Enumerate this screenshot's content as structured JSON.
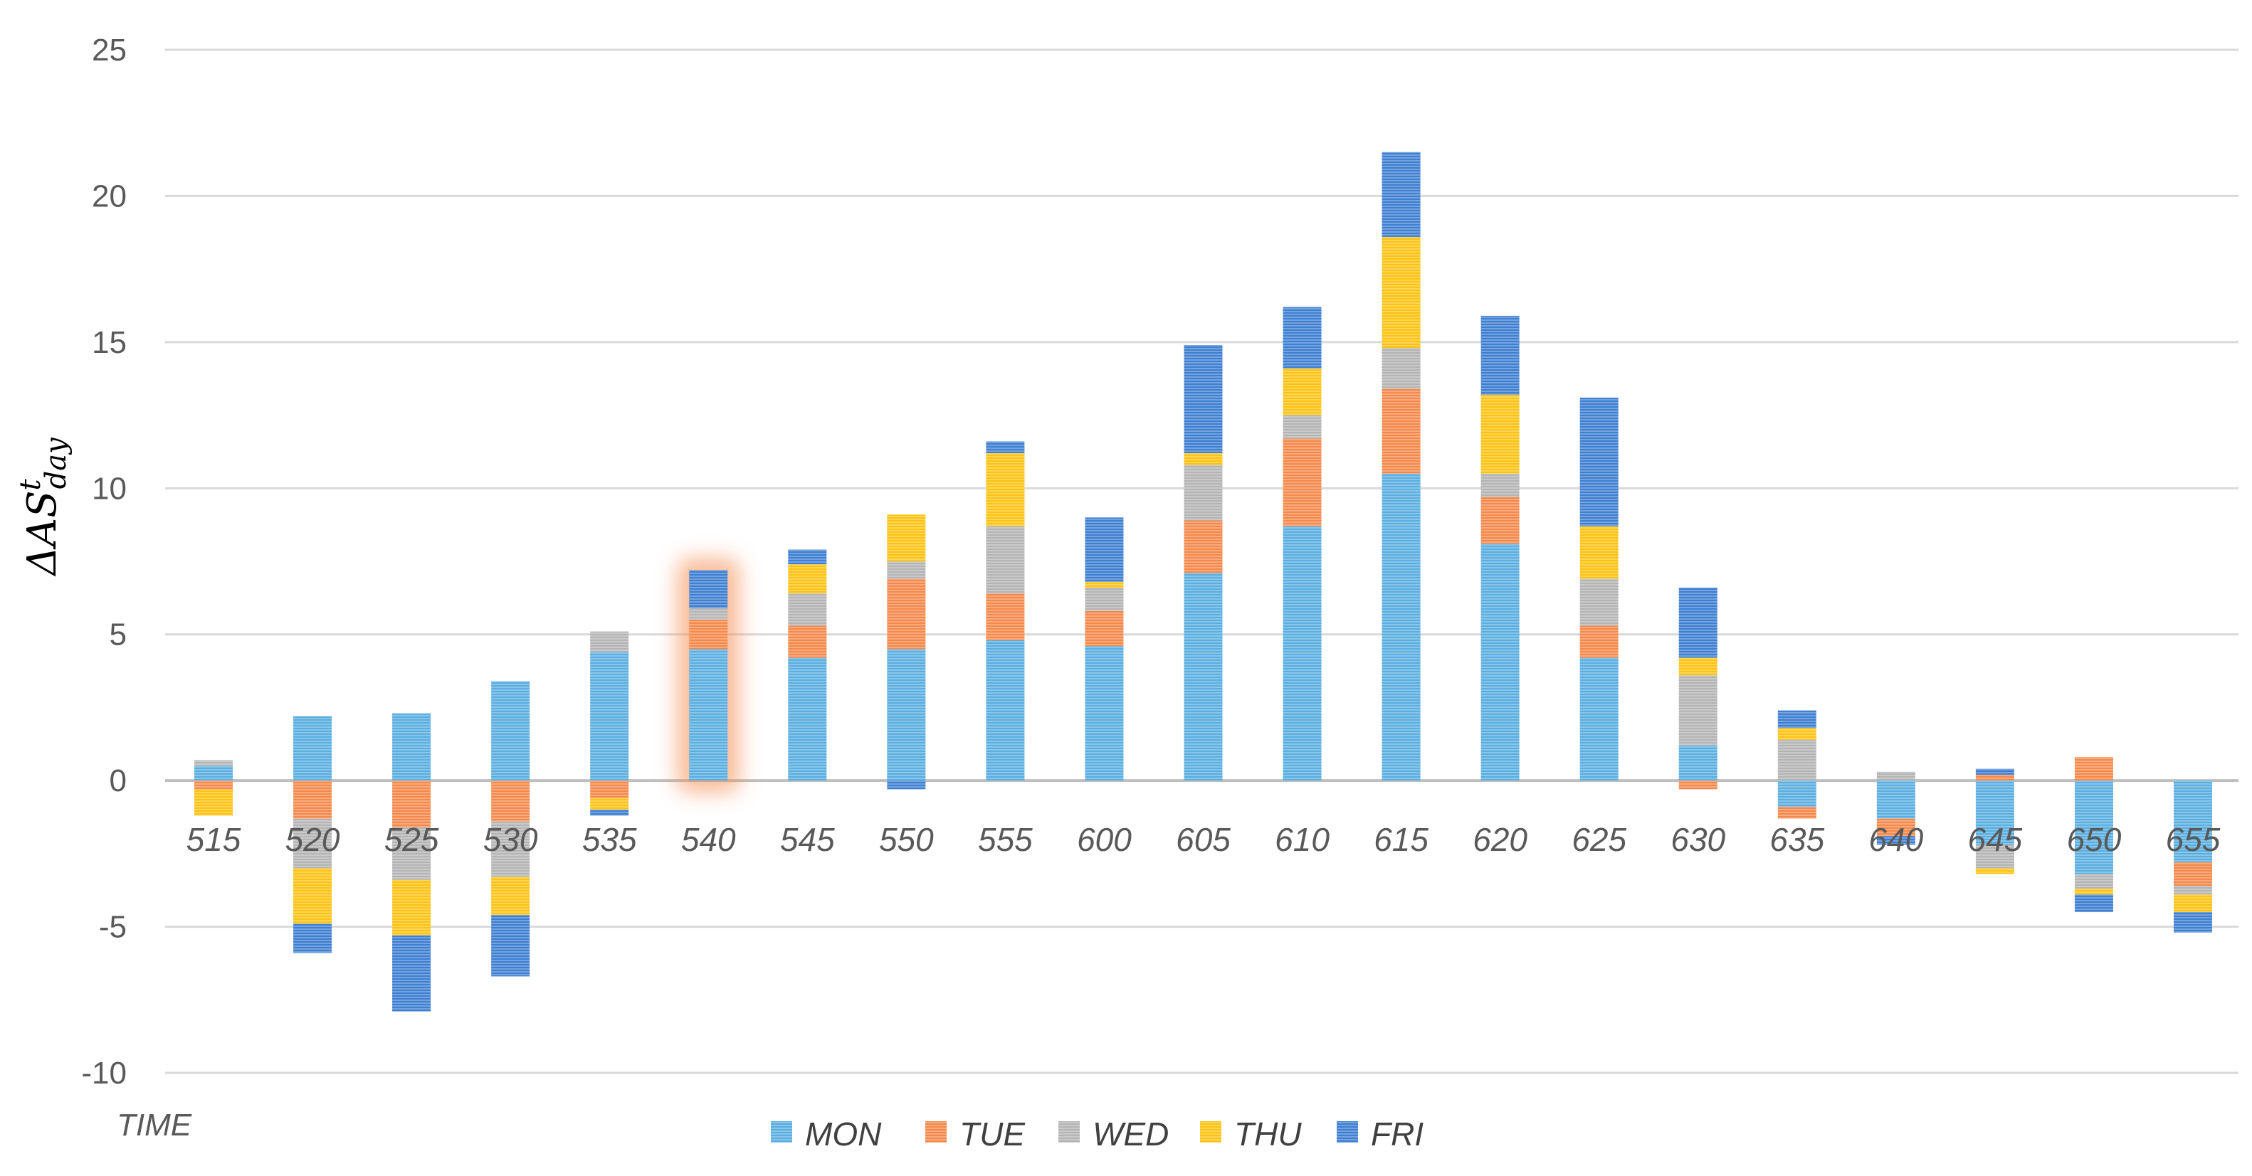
{
  "chart_data": {
    "type": "bar",
    "stacked": true,
    "title": "",
    "xlabel": "TIME",
    "ylabel": "ΔAS",
    "ylabel_superscript": "t",
    "ylabel_subscript": "day",
    "ylim": [
      -10,
      25
    ],
    "yticks": [
      -10,
      -5,
      0,
      5,
      10,
      15,
      20,
      25
    ],
    "grid": true,
    "legend_position": "bottom",
    "highlighted_category": "540",
    "categories": [
      "515",
      "520",
      "525",
      "530",
      "535",
      "540",
      "545",
      "550",
      "555",
      "600",
      "605",
      "610",
      "615",
      "620",
      "625",
      "630",
      "635",
      "640",
      "645",
      "650",
      "655"
    ],
    "series": [
      {
        "name": "MON",
        "color": "#5aaee0",
        "values": [
          0.5,
          2.2,
          2.3,
          3.4,
          4.4,
          4.5,
          4.2,
          4.5,
          4.8,
          4.6,
          7.1,
          8.7,
          10.5,
          8.1,
          4.2,
          1.2,
          -0.9,
          -1.3,
          -2.2,
          -3.2,
          -2.8
        ]
      },
      {
        "name": "TUE",
        "color": "#f4894b",
        "values": [
          -0.3,
          -1.3,
          -1.6,
          -1.4,
          -0.6,
          1.0,
          1.1,
          2.4,
          1.6,
          1.2,
          1.8,
          3.0,
          2.9,
          1.6,
          1.1,
          -0.3,
          -0.4,
          -0.6,
          0.2,
          0.8,
          -0.8
        ]
      },
      {
        "name": "WED",
        "color": "#b4b4b4",
        "values": [
          0.2,
          -1.7,
          -1.8,
          -1.9,
          0.7,
          0.4,
          1.1,
          0.6,
          2.3,
          0.8,
          1.9,
          0.8,
          1.4,
          0.8,
          1.6,
          2.4,
          1.4,
          0.3,
          -0.8,
          -0.5,
          -0.3
        ]
      },
      {
        "name": "THU",
        "color": "#fcc315",
        "values": [
          -0.9,
          -1.9,
          -1.9,
          -1.3,
          -0.4,
          0.0,
          1.0,
          1.6,
          2.5,
          0.2,
          0.4,
          1.6,
          3.8,
          2.7,
          1.8,
          0.6,
          0.4,
          0.0,
          -0.2,
          -0.2,
          -0.6
        ]
      },
      {
        "name": "FRI",
        "color": "#3f7fd1",
        "values": [
          0.0,
          -1.0,
          -2.6,
          -2.1,
          -0.2,
          1.3,
          0.5,
          -0.3,
          0.4,
          2.2,
          3.7,
          2.1,
          2.9,
          2.7,
          4.4,
          2.4,
          0.6,
          -0.3,
          0.2,
          -0.6,
          -0.7
        ]
      }
    ]
  }
}
